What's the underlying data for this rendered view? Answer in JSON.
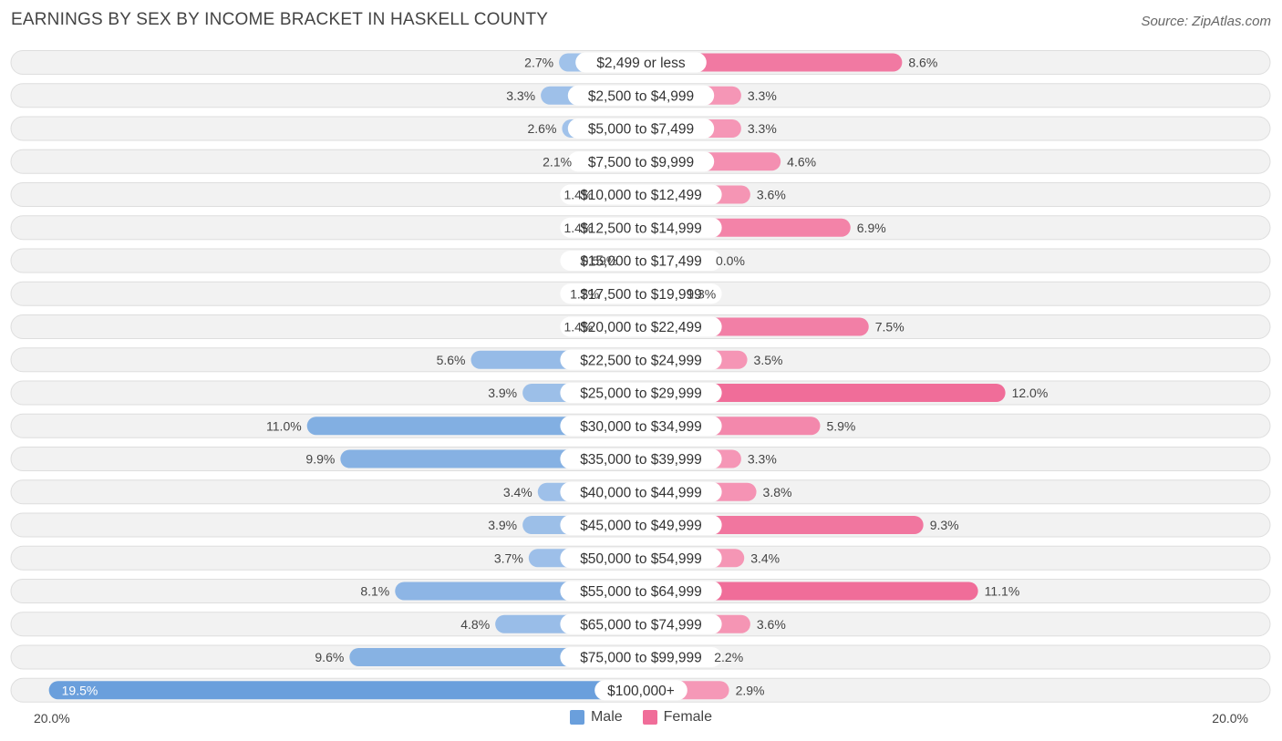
{
  "chart_data": {
    "type": "bar",
    "orientation": "horizontal-diverging",
    "title": "EARNINGS BY SEX BY INCOME BRACKET IN HASKELL COUNTY",
    "source": "Source: ZipAtlas.com",
    "categories": [
      "$2,499 or less",
      "$2,500 to $4,999",
      "$5,000 to $7,499",
      "$7,500 to $9,999",
      "$10,000 to $12,499",
      "$12,500 to $14,999",
      "$15,000 to $17,499",
      "$17,500 to $19,999",
      "$20,000 to $22,499",
      "$22,500 to $24,999",
      "$25,000 to $29,999",
      "$30,000 to $34,999",
      "$35,000 to $39,999",
      "$40,000 to $44,999",
      "$45,000 to $49,999",
      "$50,000 to $54,999",
      "$55,000 to $64,999",
      "$65,000 to $74,999",
      "$75,000 to $99,999",
      "$100,000+"
    ],
    "series": [
      {
        "name": "Male",
        "values": [
          2.7,
          3.3,
          2.6,
          2.1,
          1.4,
          1.4,
          0.59,
          1.2,
          1.4,
          5.6,
          3.9,
          11.0,
          9.9,
          3.4,
          3.9,
          3.7,
          8.1,
          4.8,
          9.6,
          19.5
        ],
        "labels": [
          "2.7%",
          "3.3%",
          "2.6%",
          "2.1%",
          "1.4%",
          "1.4%",
          "0.59%",
          "1.2%",
          "1.4%",
          "5.6%",
          "3.9%",
          "11.0%",
          "9.9%",
          "3.4%",
          "3.9%",
          "3.7%",
          "8.1%",
          "4.8%",
          "9.6%",
          "19.5%"
        ]
      },
      {
        "name": "Female",
        "values": [
          8.6,
          3.3,
          3.3,
          4.6,
          3.6,
          6.9,
          0.0,
          1.3,
          7.5,
          3.5,
          12.0,
          5.9,
          3.3,
          3.8,
          9.3,
          3.4,
          11.1,
          3.6,
          2.2,
          2.9
        ],
        "labels": [
          "8.6%",
          "3.3%",
          "3.3%",
          "4.6%",
          "3.6%",
          "6.9%",
          "0.0%",
          "1.3%",
          "7.5%",
          "3.5%",
          "12.0%",
          "5.9%",
          "3.3%",
          "3.8%",
          "9.3%",
          "3.4%",
          "11.1%",
          "3.6%",
          "2.2%",
          "2.9%"
        ]
      }
    ],
    "xlim": [
      -20,
      20
    ],
    "axis_min_label": "20.0%",
    "axis_max_label": "20.0%",
    "legend_position": "bottom-center",
    "colors": {
      "male_light": "#aac8ec",
      "male_strong": "#6a9fdc",
      "female_light": "#f7a8c2",
      "female_strong": "#f06d99",
      "row_bg": "#f2f2f2",
      "row_border": "#dedede"
    }
  }
}
